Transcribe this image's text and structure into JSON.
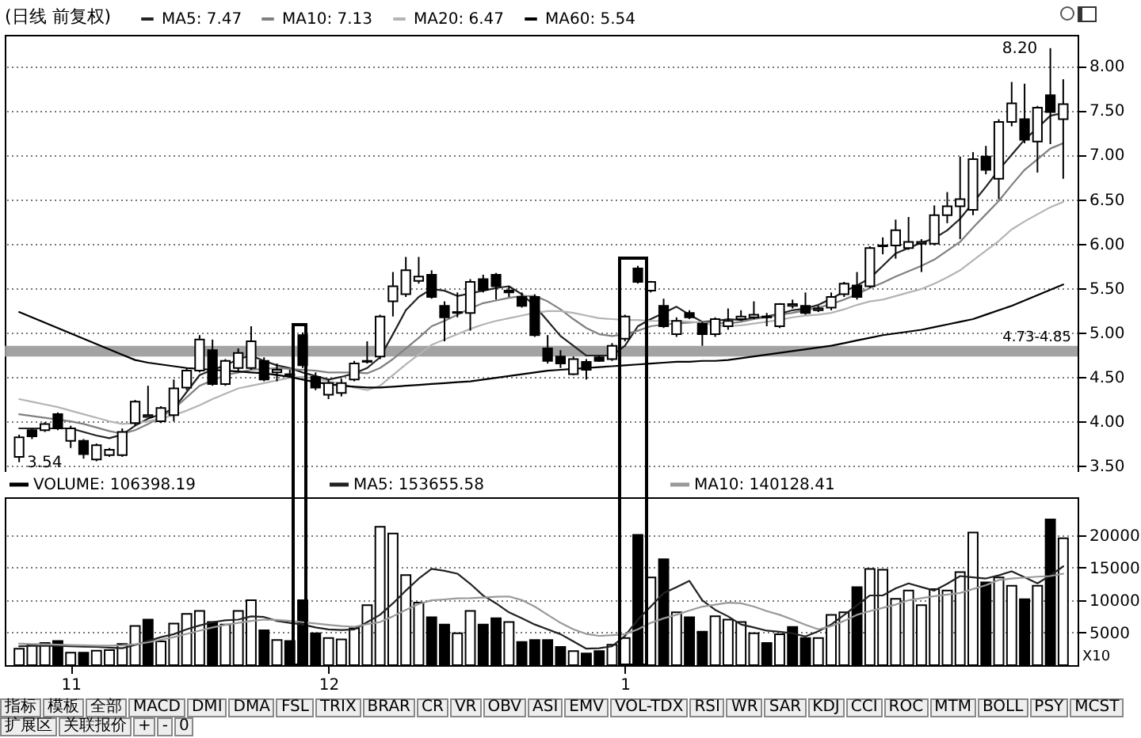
{
  "chart_data": [
    {
      "type": "candlestick",
      "title": "(日线 前复权)",
      "categories": [
        null,
        null,
        null,
        null,
        "11",
        null,
        null,
        null,
        null,
        null,
        null,
        null,
        null,
        null,
        null,
        null,
        null,
        null,
        null,
        null,
        null,
        null,
        null,
        null,
        "12",
        null,
        null,
        null,
        null,
        null,
        null,
        null,
        null,
        null,
        null,
        null,
        null,
        null,
        null,
        null,
        null,
        null,
        null,
        null,
        null,
        null,
        null,
        "1",
        null,
        null,
        null,
        null,
        null,
        null,
        null,
        null,
        null,
        null,
        null,
        null,
        null,
        null,
        null,
        null,
        null,
        null,
        null,
        null,
        null,
        null,
        null,
        null,
        null,
        null,
        null,
        null,
        null,
        null,
        null,
        null,
        null,
        null
      ],
      "ohlc": [
        [
          3.6,
          3.85,
          3.54,
          3.82
        ],
        [
          3.9,
          3.92,
          3.8,
          3.83
        ],
        [
          3.9,
          3.99,
          3.88,
          3.97
        ],
        [
          4.08,
          4.1,
          3.9,
          3.92
        ],
        [
          3.78,
          3.95,
          3.7,
          3.92
        ],
        [
          3.78,
          3.8,
          3.58,
          3.63
        ],
        [
          3.57,
          3.75,
          3.55,
          3.73
        ],
        [
          3.62,
          3.7,
          3.6,
          3.68
        ],
        [
          3.62,
          3.92,
          3.6,
          3.88
        ],
        [
          3.98,
          4.24,
          3.95,
          4.22
        ],
        [
          4.05,
          4.4,
          4.05,
          4.07
        ],
        [
          4.0,
          4.17,
          3.98,
          4.15
        ],
        [
          4.07,
          4.47,
          4.0,
          4.37
        ],
        [
          4.38,
          4.6,
          4.35,
          4.57
        ],
        [
          4.57,
          4.97,
          4.55,
          4.92
        ],
        [
          4.8,
          4.92,
          4.4,
          4.42
        ],
        [
          4.42,
          4.7,
          4.4,
          4.68
        ],
        [
          4.6,
          4.82,
          4.55,
          4.77
        ],
        [
          4.6,
          5.07,
          4.58,
          4.9
        ],
        [
          4.68,
          4.72,
          4.45,
          4.47
        ],
        [
          4.55,
          4.65,
          4.45,
          4.58
        ],
        [
          4.53,
          4.58,
          4.5,
          4.52
        ],
        [
          4.97,
          5.0,
          4.6,
          4.63
        ],
        [
          4.5,
          4.55,
          4.35,
          4.38
        ],
        [
          4.3,
          4.47,
          4.25,
          4.43
        ],
        [
          4.32,
          4.48,
          4.28,
          4.43
        ],
        [
          4.47,
          4.68,
          4.45,
          4.65
        ],
        [
          4.67,
          4.9,
          4.65,
          4.68
        ],
        [
          4.73,
          5.2,
          4.7,
          5.18
        ],
        [
          5.35,
          5.68,
          5.18,
          5.52
        ],
        [
          5.43,
          5.85,
          5.4,
          5.7
        ],
        [
          5.58,
          5.85,
          5.55,
          5.63
        ],
        [
          5.65,
          5.7,
          5.38,
          5.4
        ],
        [
          5.3,
          5.35,
          4.9,
          5.17
        ],
        [
          5.22,
          5.45,
          5.17,
          5.23
        ],
        [
          5.22,
          5.6,
          5.02,
          5.57
        ],
        [
          5.6,
          5.65,
          5.45,
          5.48
        ],
        [
          5.65,
          5.67,
          5.37,
          5.52
        ],
        [
          5.47,
          5.52,
          5.4,
          5.45
        ],
        [
          5.4,
          5.45,
          5.28,
          5.3
        ],
        [
          5.4,
          5.43,
          4.95,
          4.97
        ],
        [
          4.82,
          4.97,
          4.65,
          4.68
        ],
        [
          4.73,
          4.8,
          4.6,
          4.65
        ],
        [
          4.53,
          4.73,
          4.52,
          4.7
        ],
        [
          4.67,
          4.7,
          4.47,
          4.58
        ],
        [
          4.72,
          4.74,
          4.67,
          4.68
        ],
        [
          4.7,
          4.88,
          4.68,
          4.85
        ],
        [
          4.93,
          5.2,
          4.9,
          5.18
        ],
        [
          5.72,
          5.75,
          5.55,
          5.57
        ],
        [
          5.47,
          5.58,
          5.45,
          5.57
        ],
        [
          5.3,
          5.38,
          5.05,
          5.07
        ],
        [
          4.98,
          5.17,
          4.95,
          5.13
        ],
        [
          5.22,
          5.25,
          5.15,
          5.17
        ],
        [
          5.1,
          5.12,
          4.85,
          4.98
        ],
        [
          4.98,
          5.17,
          4.95,
          5.15
        ],
        [
          5.07,
          5.27,
          5.03,
          5.13
        ],
        [
          5.15,
          5.25,
          5.13,
          5.18
        ],
        [
          5.17,
          5.35,
          5.15,
          5.2
        ],
        [
          5.17,
          5.22,
          5.07,
          5.18
        ],
        [
          5.07,
          5.33,
          5.05,
          5.32
        ],
        [
          5.3,
          5.37,
          5.27,
          5.32
        ],
        [
          5.3,
          5.45,
          5.2,
          5.22
        ],
        [
          5.25,
          5.3,
          5.23,
          5.27
        ],
        [
          5.28,
          5.45,
          5.25,
          5.4
        ],
        [
          5.43,
          5.57,
          5.4,
          5.55
        ],
        [
          5.53,
          5.68,
          5.37,
          5.4
        ],
        [
          5.52,
          5.97,
          5.5,
          5.95
        ],
        [
          5.97,
          6.07,
          5.88,
          5.98
        ],
        [
          5.98,
          6.27,
          5.83,
          6.15
        ],
        [
          5.95,
          6.3,
          5.93,
          6.02
        ],
        [
          6.0,
          6.05,
          5.68,
          6.02
        ],
        [
          6.0,
          6.43,
          5.98,
          6.32
        ],
        [
          6.32,
          6.58,
          6.23,
          6.42
        ],
        [
          6.42,
          6.98,
          6.05,
          6.5
        ],
        [
          6.38,
          7.03,
          6.32,
          6.95
        ],
        [
          6.98,
          7.1,
          6.78,
          6.83
        ],
        [
          6.73,
          7.4,
          6.5,
          7.37
        ],
        [
          7.37,
          7.82,
          7.32,
          7.58
        ],
        [
          7.4,
          7.8,
          7.13,
          7.17
        ],
        [
          7.15,
          7.55,
          6.8,
          7.53
        ],
        [
          7.67,
          8.2,
          7.12,
          7.48
        ],
        [
          7.4,
          7.85,
          6.73,
          7.57
        ]
      ],
      "colors": [
        "#ffffff",
        "#000000",
        "#ffffff",
        "#000000",
        "#ffffff",
        "#000000",
        "#ffffff",
        "#ffffff",
        "#ffffff",
        "#ffffff",
        "#ffffff",
        "#ffffff",
        "#ffffff",
        "#ffffff",
        "#ffffff",
        "#000000",
        "#ffffff",
        "#ffffff",
        "#ffffff",
        "#000000",
        "#ffffff",
        "#000000",
        "#000000",
        "#000000",
        "#ffffff",
        "#ffffff",
        "#ffffff",
        "#ffffff",
        "#ffffff",
        "#ffffff",
        "#ffffff",
        "#ffffff",
        "#000000",
        "#000000",
        "#ffffff",
        "#ffffff",
        "#000000",
        "#000000",
        "#000000",
        "#000000",
        "#000000",
        "#000000",
        "#000000",
        "#ffffff",
        "#000000",
        "#000000",
        "#ffffff",
        "#ffffff",
        "#000000",
        "#ffffff",
        "#000000",
        "#ffffff",
        "#000000",
        "#000000",
        "#ffffff",
        "#ffffff",
        "#ffffff",
        "#ffffff",
        "#ffffff",
        "#ffffff",
        "#ffffff",
        "#000000",
        "#ffffff",
        "#ffffff",
        "#ffffff",
        "#000000",
        "#ffffff",
        "#ffffff",
        "#ffffff",
        "#ffffff",
        "#ffffff",
        "#ffffff",
        "#ffffff",
        "#ffffff",
        "#ffffff",
        "#000000",
        "#ffffff",
        "#ffffff",
        "#000000",
        "#ffffff",
        "#000000",
        "#ffffff"
      ],
      "color": "#000000",
      "series": [
        {
          "name": "MA5: 7.47",
          "type": "line",
          "color": "#222222",
          "values": [
            3.92,
            3.92,
            3.92,
            3.92,
            3.92,
            3.88,
            3.84,
            3.81,
            3.85,
            3.95,
            4.03,
            4.08,
            4.14,
            4.33,
            4.52,
            4.58,
            4.63,
            4.7,
            4.74,
            4.68,
            4.63,
            4.6,
            4.55,
            4.51,
            4.47,
            4.5,
            4.54,
            4.6,
            4.72,
            4.98,
            5.25,
            5.4,
            5.49,
            5.47,
            5.41,
            5.44,
            5.47,
            5.5,
            5.52,
            5.43,
            5.3,
            5.13,
            4.96,
            4.85,
            4.74,
            4.74,
            4.74,
            4.85,
            5.07,
            5.15,
            5.22,
            5.29,
            5.2,
            5.12,
            5.13,
            5.15,
            5.14,
            5.16,
            5.18,
            5.21,
            5.25,
            5.27,
            5.31,
            5.38,
            5.46,
            5.53,
            5.61,
            5.75,
            5.89,
            5.95,
            6.01,
            6.06,
            6.15,
            6.28,
            6.46,
            6.64,
            6.83,
            7.0,
            7.17,
            7.3,
            7.44,
            7.47
          ]
        },
        {
          "name": "MA10: 7.13",
          "type": "line",
          "color": "#808080",
          "values": [
            4.08,
            4.06,
            4.04,
            4.02,
            4.0,
            3.97,
            3.93,
            3.89,
            3.86,
            3.9,
            3.97,
            4.05,
            4.14,
            4.27,
            4.4,
            4.46,
            4.52,
            4.55,
            4.58,
            4.59,
            4.6,
            4.59,
            4.58,
            4.57,
            4.55,
            4.55,
            4.55,
            4.54,
            4.6,
            4.7,
            4.82,
            4.94,
            5.07,
            5.13,
            5.2,
            5.27,
            5.33,
            5.36,
            5.39,
            5.41,
            5.41,
            5.35,
            5.26,
            5.15,
            5.05,
            4.98,
            4.96,
            4.98,
            5.02,
            5.07,
            5.09,
            5.1,
            5.11,
            5.12,
            5.11,
            5.1,
            5.12,
            5.15,
            5.17,
            5.2,
            5.22,
            5.25,
            5.28,
            5.32,
            5.37,
            5.43,
            5.5,
            5.56,
            5.63,
            5.69,
            5.75,
            5.82,
            5.92,
            6.02,
            6.18,
            6.33,
            6.48,
            6.66,
            6.83,
            6.95,
            7.07,
            7.13
          ]
        },
        {
          "name": "MA20: 6.47",
          "type": "line",
          "color": "#b4b4b4",
          "values": [
            4.25,
            4.22,
            4.19,
            4.16,
            4.12,
            4.08,
            4.04,
            4.0,
            3.97,
            3.98,
            4.0,
            4.03,
            4.07,
            4.12,
            4.18,
            4.25,
            4.31,
            4.37,
            4.4,
            4.43,
            4.46,
            4.49,
            4.5,
            4.48,
            4.45,
            4.42,
            4.38,
            4.35,
            4.4,
            4.52,
            4.64,
            4.75,
            4.86,
            4.92,
            4.98,
            5.04,
            5.09,
            5.13,
            5.16,
            5.19,
            5.22,
            5.24,
            5.24,
            5.22,
            5.19,
            5.16,
            5.15,
            5.14,
            5.14,
            5.13,
            5.13,
            5.13,
            5.12,
            5.11,
            5.08,
            5.07,
            5.08,
            5.1,
            5.12,
            5.14,
            5.17,
            5.19,
            5.2,
            5.22,
            5.26,
            5.31,
            5.35,
            5.37,
            5.41,
            5.45,
            5.49,
            5.55,
            5.62,
            5.7,
            5.81,
            5.92,
            6.03,
            6.16,
            6.25,
            6.33,
            6.41,
            6.47
          ]
        },
        {
          "name": "MA60: 5.54",
          "type": "line",
          "color": "#000000",
          "values": [
            5.23,
            5.17,
            5.11,
            5.05,
            4.99,
            4.93,
            4.87,
            4.81,
            4.75,
            4.69,
            4.66,
            4.64,
            4.62,
            4.6,
            4.59,
            4.58,
            4.57,
            4.56,
            4.55,
            4.54,
            4.52,
            4.5,
            4.47,
            4.44,
            4.42,
            4.4,
            4.39,
            4.38,
            4.38,
            4.39,
            4.4,
            4.41,
            4.42,
            4.43,
            4.44,
            4.45,
            4.47,
            4.49,
            4.51,
            4.53,
            4.55,
            4.57,
            4.58,
            4.59,
            4.6,
            4.61,
            4.62,
            4.63,
            4.64,
            4.65,
            4.66,
            4.67,
            4.67,
            4.68,
            4.68,
            4.69,
            4.71,
            4.73,
            4.75,
            4.77,
            4.79,
            4.81,
            4.83,
            4.85,
            4.88,
            4.91,
            4.94,
            4.97,
            4.99,
            5.01,
            5.03,
            5.06,
            5.09,
            5.12,
            5.15,
            5.2,
            5.25,
            5.3,
            5.36,
            5.42,
            5.48,
            5.54
          ]
        }
      ],
      "ylim": [
        3.43,
        8.35
      ],
      "yticks": [
        {
          "value": 3.5,
          "label": "3.50"
        },
        {
          "value": 4,
          "label": "4.00"
        },
        {
          "value": 4.5,
          "label": "4.50"
        },
        {
          "value": 5,
          "label": "5.00"
        },
        {
          "value": 5.5,
          "label": "5.50"
        },
        {
          "value": 6,
          "label": "6.00"
        },
        {
          "value": 6.5,
          "label": "6.50"
        },
        {
          "value": 7,
          "label": "7.00"
        },
        {
          "value": 7.5,
          "label": "7.50"
        },
        {
          "value": 8,
          "label": "8.00"
        }
      ],
      "grid": "y",
      "legend": "top left",
      "tick_labels": "y",
      "bands": [
        {
          "axis": "y",
          "from": 4.73,
          "to": 4.85,
          "label": "4.73-4.85",
          "color": "#999999"
        }
      ],
      "annotations": [
        "8.20",
        "3.54"
      ]
    },
    {
      "type": "bar",
      "categories": [
        null,
        null,
        null,
        null,
        "11",
        null,
        null,
        null,
        null,
        null,
        null,
        null,
        null,
        null,
        null,
        null,
        null,
        null,
        null,
        null,
        null,
        null,
        null,
        null,
        "12",
        null,
        null,
        null,
        null,
        null,
        null,
        null,
        null,
        null,
        null,
        null,
        null,
        null,
        null,
        null,
        null,
        null,
        null,
        null,
        null,
        null,
        null,
        "1",
        null,
        null,
        null,
        null,
        null,
        null,
        null,
        null,
        null,
        null,
        null,
        null,
        null,
        null,
        null,
        null,
        null,
        null,
        null,
        null,
        null,
        null,
        null,
        null,
        null,
        null,
        null,
        null,
        null,
        null,
        null,
        null,
        null,
        null
      ],
      "series": [
        {
          "name": "VOLUME: 106398.19",
          "type": "bar",
          "color": "#000000",
          "colors": [
            "#ffffff",
            "#ffffff",
            "#ffffff",
            "#000000",
            "#ffffff",
            "#000000",
            "#ffffff",
            "#ffffff",
            "#ffffff",
            "#ffffff",
            "#000000",
            "#ffffff",
            "#ffffff",
            "#ffffff",
            "#ffffff",
            "#000000",
            "#ffffff",
            "#ffffff",
            "#ffffff",
            "#000000",
            "#ffffff",
            "#000000",
            "#000000",
            "#000000",
            "#ffffff",
            "#ffffff",
            "#ffffff",
            "#ffffff",
            "#ffffff",
            "#ffffff",
            "#ffffff",
            "#ffffff",
            "#000000",
            "#000000",
            "#ffffff",
            "#ffffff",
            "#000000",
            "#000000",
            "#ffffff",
            "#000000",
            "#000000",
            "#000000",
            "#000000",
            "#ffffff",
            "#000000",
            "#000000",
            "#ffffff",
            "#ffffff",
            "#000000",
            "#ffffff",
            "#000000",
            "#ffffff",
            "#000000",
            "#000000",
            "#ffffff",
            "#ffffff",
            "#ffffff",
            "#ffffff",
            "#000000",
            "#ffffff",
            "#000000",
            "#000000",
            "#ffffff",
            "#ffffff",
            "#ffffff",
            "#000000",
            "#ffffff",
            "#ffffff",
            "#ffffff",
            "#ffffff",
            "#ffffff",
            "#ffffff",
            "#ffffff",
            "#ffffff",
            "#ffffff",
            "#000000",
            "#ffffff",
            "#ffffff",
            "#000000",
            "#ffffff",
            "#000000",
            "#ffffff"
          ],
          "values": [
            2530,
            3050,
            3420,
            3720,
            1930,
            1930,
            2230,
            2300,
            3270,
            6030,
            6990,
            3650,
            6400,
            7890,
            8330,
            6620,
            6250,
            8330,
            9970,
            5360,
            3870,
            3720,
            9970,
            4910,
            4170,
            3940,
            5650,
            9230,
            21280,
            20240,
            13840,
            9600,
            7370,
            6250,
            4910,
            8330,
            6250,
            7220,
            6620,
            3570,
            3870,
            3870,
            2800,
            2160,
            1790,
            2160,
            3120,
            4170,
            20010,
            13470,
            16290,
            8110,
            7370,
            5130,
            7510,
            6990,
            6620,
            4910,
            3420,
            4760,
            5880,
            4170,
            4170,
            7740,
            8110,
            11980,
            14800,
            14660,
            10190,
            11460,
            9230,
            11680,
            11460,
            14290,
            20390,
            12720,
            13470,
            12200,
            10120,
            12200,
            22390,
            19490
          ]
        },
        {
          "name": "MA5: 153655.58",
          "type": "line",
          "color": "#222222",
          "values": [
            2900,
            2950,
            3000,
            2950,
            2900,
            2850,
            2800,
            2700,
            2600,
            3100,
            3700,
            4300,
            4760,
            5500,
            6100,
            6600,
            6900,
            7000,
            7500,
            7400,
            6800,
            6500,
            6250,
            5800,
            5500,
            5400,
            5500,
            6600,
            7740,
            9500,
            11460,
            13300,
            14800,
            14500,
            14060,
            12500,
            10700,
            9500,
            8110,
            7200,
            6250,
            5500,
            4760,
            3650,
            2530,
            2600,
            2900,
            4500,
            6990,
            9000,
            11080,
            12000,
            12950,
            9970,
            8500,
            7500,
            6250,
            5800,
            5300,
            5130,
            4900,
            4400,
            5200,
            6250,
            7700,
            9200,
            10710,
            10710,
            11800,
            12570,
            12000,
            11460,
            12500,
            13690,
            13500,
            13320,
            13800,
            14430,
            13500,
            12570,
            13800,
            15180
          ]
        },
        {
          "name": "MA10: 140128.41",
          "type": "line",
          "color": "#999999",
          "values": [
            3300,
            3250,
            3200,
            3150,
            3100,
            3050,
            3000,
            3000,
            3050,
            3200,
            3500,
            3900,
            4300,
            4800,
            5300,
            5800,
            6200,
            6500,
            6800,
            7000,
            6950,
            6800,
            6600,
            6400,
            6200,
            6000,
            5900,
            6300,
            6620,
            7500,
            8500,
            9400,
            9970,
            10100,
            10270,
            10300,
            10400,
            10500,
            10560,
            10000,
            9000,
            7740,
            6500,
            5500,
            4800,
            4500,
            4600,
            4760,
            5500,
            6500,
            7200,
            7740,
            8400,
            9000,
            9300,
            9600,
            9500,
            9000,
            8300,
            7740,
            7000,
            6200,
            5500,
            6000,
            6800,
            7740,
            8300,
            8800,
            9300,
            9970,
            10300,
            10600,
            10850,
            11090,
            11700,
            12300,
            13090,
            13300,
            13450,
            13600,
            13690,
            14060
          ]
        }
      ],
      "ylim": [
        0,
        25800
      ],
      "yticks": [
        5000,
        10000,
        15000,
        20000
      ],
      "grid": "y",
      "legend": "top left",
      "annotations": [
        "X10",
        "指标",
        "模板",
        "全部",
        "MACD",
        "DMI",
        "DMA",
        "FSL",
        "TRIX",
        "BRAR",
        "CR",
        "VR",
        "OBV",
        "ASI",
        "EMV",
        "VOL-TDX",
        "RSI",
        "WR",
        "SAR",
        "KDJ",
        "CCI",
        "ROC",
        "MTM",
        "BOLL",
        "PSY",
        "MCST",
        "扩展区",
        "关联报价",
        "+",
        "-",
        "0"
      ]
    }
  ]
}
